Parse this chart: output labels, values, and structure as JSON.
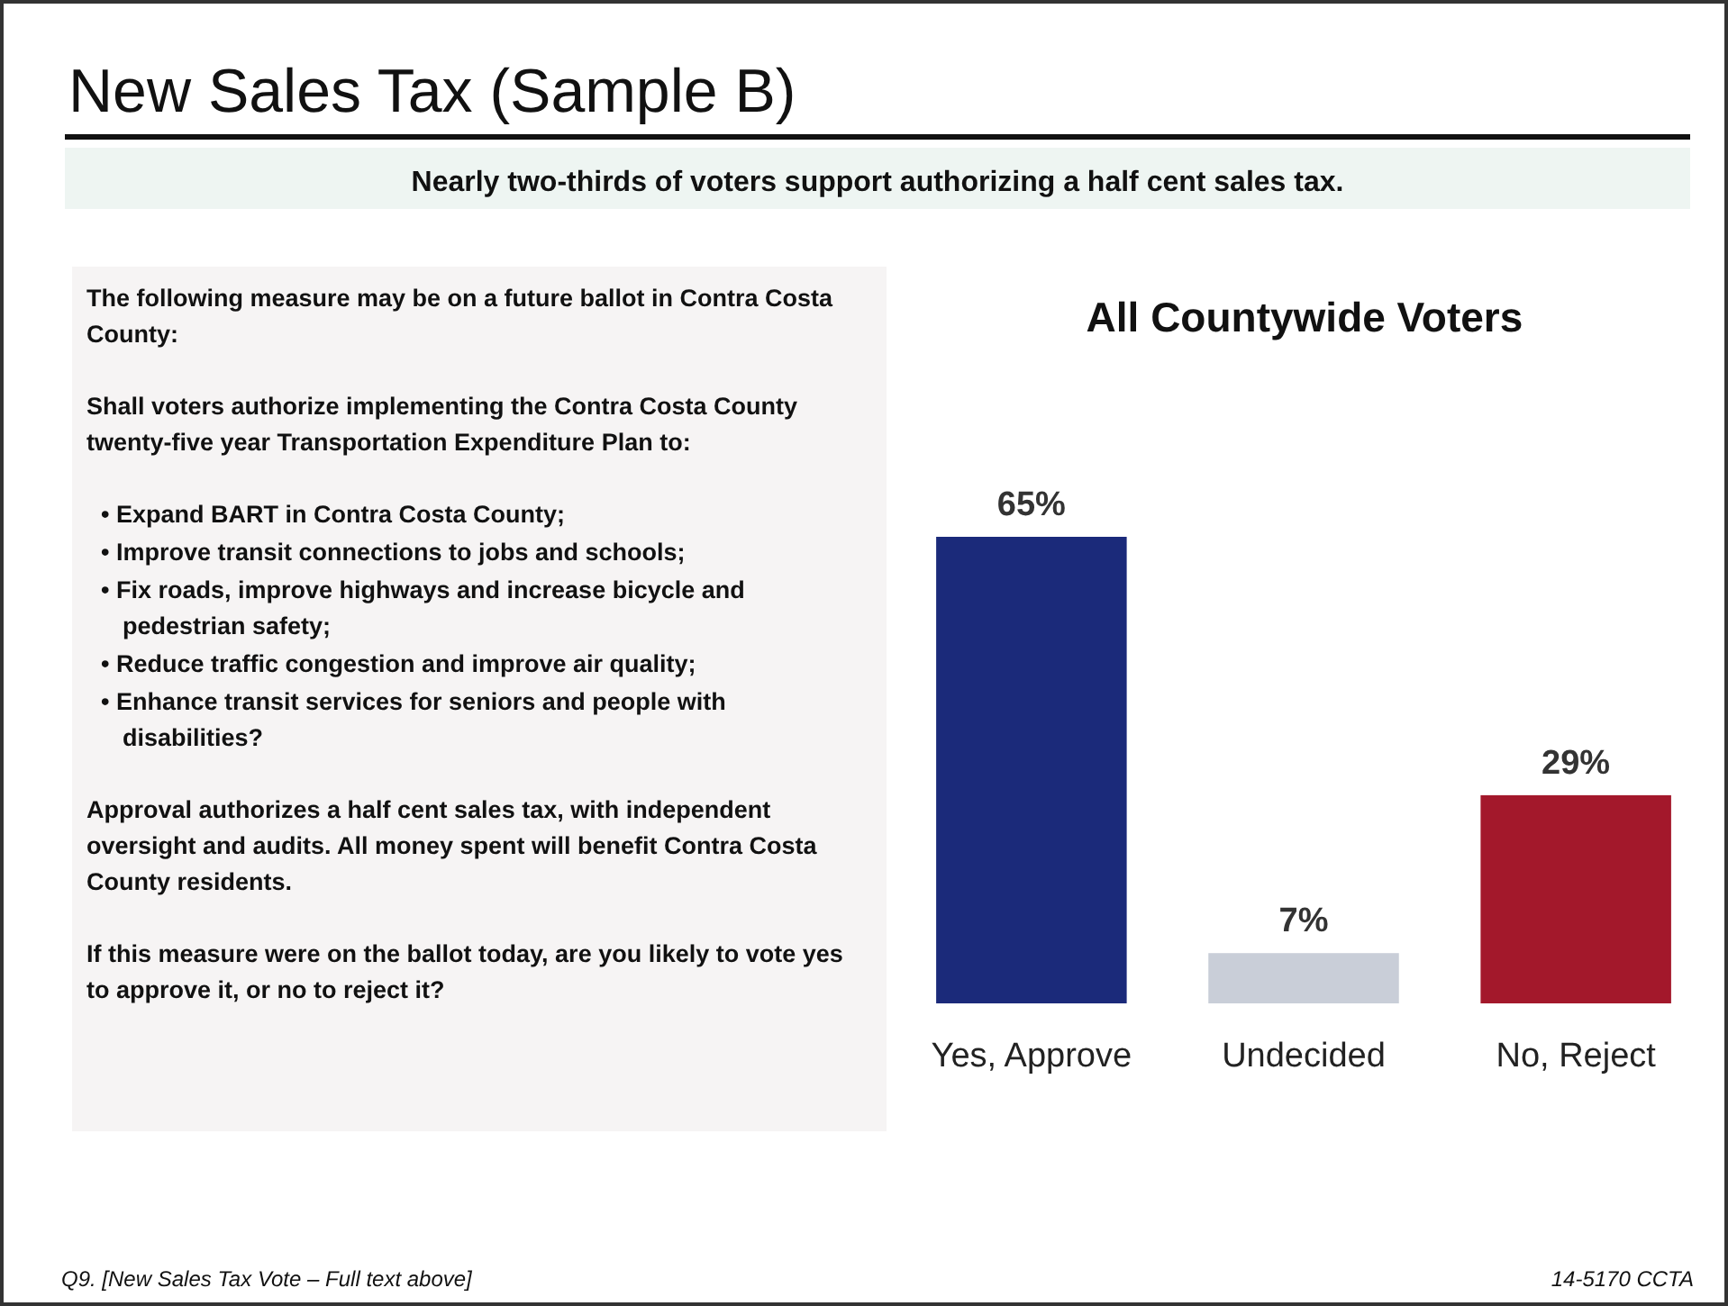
{
  "chart_data": {
    "type": "bar",
    "title": "New Sales Tax (Sample B)",
    "subtitle": "Nearly two-thirds of voters support authorizing a half cent sales tax.",
    "categories": [
      "Yes, Approve",
      "Undecided",
      "No, Reject"
    ],
    "values": [
      65,
      7,
      29
    ],
    "colors": [
      "#1b2a7a",
      "#c9ced8",
      "#a3182b"
    ],
    "value_labels": [
      "65%",
      "7%",
      "29%"
    ],
    "annotations": [
      "All Countywide Voters",
      "The following measure may be on a future ballot in Contra Costa County:",
      "Shall voters authorize implementing the Contra Costa County twenty-five year Transportation Expenditure Plan to:",
      "• Expand BART in Contra Costa County;",
      "• Improve transit connections to jobs and schools;",
      "• Fix roads, improve highways and increase bicycle and pedestrian safety;",
      "• Reduce traffic congestion and improve air quality;",
      "• Enhance transit services for seniors and people with disabilities?",
      "Approval authorizes a half cent sales tax, with independent oversight and audits. All money spent will benefit Contra Costa County residents.",
      "If this measure were on the ballot today, are you likely to vote yes to approve it, or no to reject it?",
      "Q9. [New Sales Tax Vote – Full text above]",
      "14-5170 CCTA"
    ]
  }
}
